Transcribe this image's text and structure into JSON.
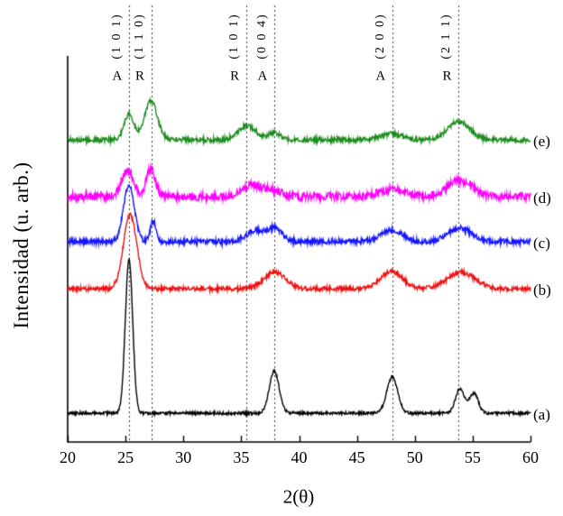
{
  "figure": {
    "background": "#ffffff",
    "axis_color": "#000000",
    "reference_line_color": "#3a3a3a"
  },
  "chart_data": {
    "type": "line",
    "title": "",
    "xlabel": "2(θ)",
    "ylabel": "Intensidad (u. arb.)",
    "xlim": [
      20,
      60
    ],
    "ylim": [
      0,
      3.3
    ],
    "grid": false,
    "x_ticks": [
      20,
      25,
      30,
      35,
      40,
      45,
      50,
      55,
      60
    ],
    "reference_lines": [
      {
        "x": 25.3,
        "miller": "(1 0 1)",
        "phase": "A"
      },
      {
        "x": 27.25,
        "miller": "(1 1 0)",
        "phase": "R"
      },
      {
        "x": 35.45,
        "miller": "(1 0 1)",
        "phase": "R"
      },
      {
        "x": 37.85,
        "miller": "(0 0 4)",
        "phase": "A"
      },
      {
        "x": 48.05,
        "miller": "(2 0 0)",
        "phase": "A"
      },
      {
        "x": 53.8,
        "miller": "(2 1 1)",
        "phase": "R"
      }
    ],
    "series": [
      {
        "label": "(a)",
        "color": "#000000",
        "offset": 0.247,
        "noise": 0.012,
        "peaks": [
          {
            "center": 25.3,
            "amp": 1.32,
            "fwhm": 0.75
          },
          {
            "center": 37.85,
            "amp": 0.36,
            "fwhm": 1.0
          },
          {
            "center": 48.05,
            "amp": 0.31,
            "fwhm": 1.1
          },
          {
            "center": 53.9,
            "amp": 0.21,
            "fwhm": 0.9
          },
          {
            "center": 55.1,
            "amp": 0.17,
            "fwhm": 0.9
          }
        ]
      },
      {
        "label": "(b)",
        "color": "#ee1111",
        "offset": 1.31,
        "noise": 0.018,
        "peaks": [
          {
            "center": 25.4,
            "amp": 0.63,
            "fwhm": 1.35
          },
          {
            "center": 37.9,
            "amp": 0.14,
            "fwhm": 2.2
          },
          {
            "center": 48.0,
            "amp": 0.15,
            "fwhm": 2.2
          },
          {
            "center": 54.0,
            "amp": 0.14,
            "fwhm": 2.8
          }
        ]
      },
      {
        "label": "(c)",
        "color": "#1414ff",
        "offset": 1.712,
        "noise": 0.022,
        "peaks": [
          {
            "center": 25.3,
            "amp": 0.49,
            "fwhm": 1.1
          },
          {
            "center": 27.4,
            "amp": 0.18,
            "fwhm": 0.6
          },
          {
            "center": 36.2,
            "amp": 0.09,
            "fwhm": 1.8
          },
          {
            "center": 37.9,
            "amp": 0.11,
            "fwhm": 1.5
          },
          {
            "center": 48.0,
            "amp": 0.1,
            "fwhm": 2.2
          },
          {
            "center": 53.9,
            "amp": 0.12,
            "fwhm": 2.4
          }
        ]
      },
      {
        "label": "(d)",
        "color": "#ff00ff",
        "offset": 2.097,
        "noise": 0.034,
        "peaks": [
          {
            "center": 25.2,
            "amp": 0.22,
            "fwhm": 1.2
          },
          {
            "center": 27.2,
            "amp": 0.24,
            "fwhm": 0.9
          },
          {
            "center": 36.0,
            "amp": 0.1,
            "fwhm": 2.2
          },
          {
            "center": 38.0,
            "amp": 0.05,
            "fwhm": 1.5
          },
          {
            "center": 48.0,
            "amp": 0.06,
            "fwhm": 2.5
          },
          {
            "center": 53.9,
            "amp": 0.14,
            "fwhm": 2.6
          }
        ]
      },
      {
        "label": "(e)",
        "color": "#1e8c1e",
        "offset": 2.583,
        "noise": 0.02,
        "peaks": [
          {
            "center": 25.3,
            "amp": 0.22,
            "fwhm": 1.0
          },
          {
            "center": 27.2,
            "amp": 0.33,
            "fwhm": 1.3
          },
          {
            "center": 35.5,
            "amp": 0.12,
            "fwhm": 1.8
          },
          {
            "center": 37.9,
            "amp": 0.06,
            "fwhm": 1.2
          },
          {
            "center": 48.0,
            "amp": 0.05,
            "fwhm": 2.2
          },
          {
            "center": 53.8,
            "amp": 0.16,
            "fwhm": 2.2
          }
        ]
      }
    ]
  }
}
